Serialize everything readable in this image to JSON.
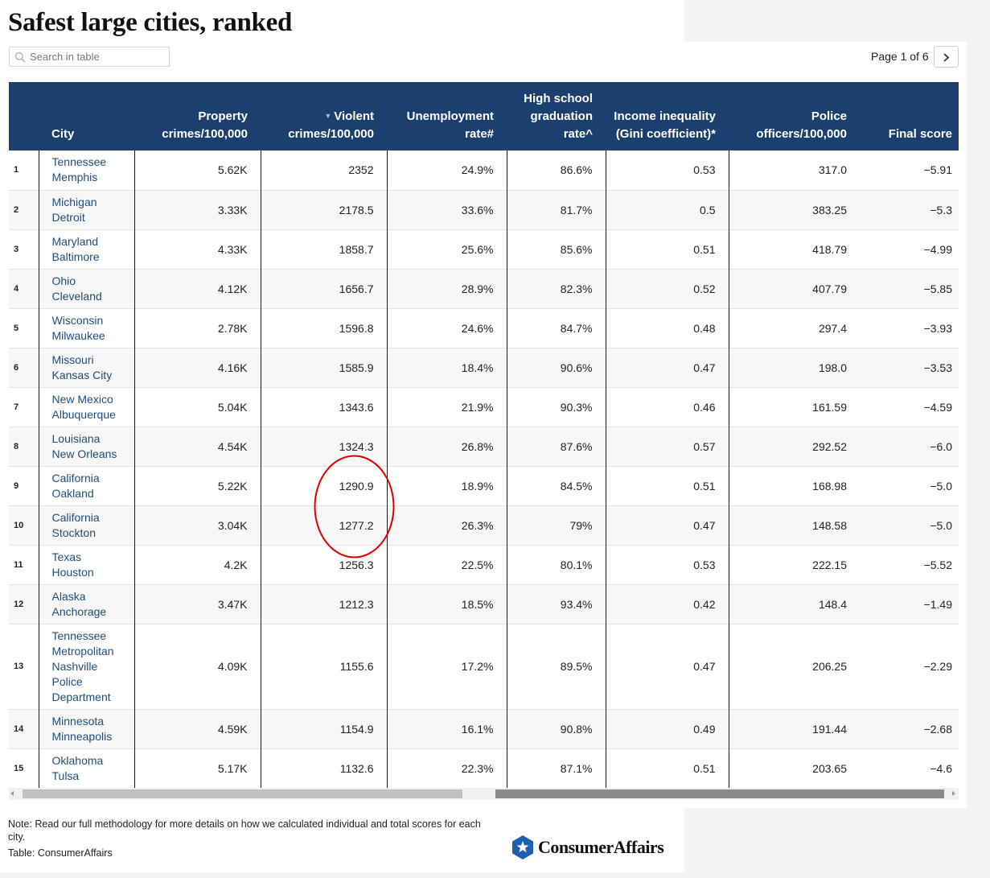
{
  "title": "Safest large cities, ranked",
  "search": {
    "placeholder": "Search in table",
    "value": "",
    "icon": "search-icon"
  },
  "pagination": {
    "label": "Page 1 of 6",
    "next_icon": "chevron-right-icon"
  },
  "table": {
    "columns": {
      "city": "City",
      "property": "Property crimes/100,000",
      "violent": "Violent crimes/100,000",
      "unemployment": "Unemployment rate#",
      "graduation": "High school graduation rate^",
      "income": "Income inequality (Gini coefficient)*",
      "police": "Police officers/100,000",
      "final": "Final score"
    },
    "sort": {
      "column": "violent",
      "direction": "descending",
      "indicator": "▼"
    },
    "rows": [
      {
        "rank": "1",
        "state": "Tennessee",
        "city": "Memphis",
        "property": "5.62K",
        "violent": "2352",
        "unemployment": "24.9%",
        "graduation": "86.6%",
        "income": "0.53",
        "police": "317.0",
        "final": "−5.91"
      },
      {
        "rank": "2",
        "state": "Michigan",
        "city": "Detroit",
        "property": "3.33K",
        "violent": "2178.5",
        "unemployment": "33.6%",
        "graduation": "81.7%",
        "income": "0.5",
        "police": "383.25",
        "final": "−5.3"
      },
      {
        "rank": "3",
        "state": "Maryland",
        "city": "Baltimore",
        "property": "4.33K",
        "violent": "1858.7",
        "unemployment": "25.6%",
        "graduation": "85.6%",
        "income": "0.51",
        "police": "418.79",
        "final": "−4.99"
      },
      {
        "rank": "4",
        "state": "Ohio",
        "city": "Cleveland",
        "property": "4.12K",
        "violent": "1656.7",
        "unemployment": "28.9%",
        "graduation": "82.3%",
        "income": "0.52",
        "police": "407.79",
        "final": "−5.85"
      },
      {
        "rank": "5",
        "state": "Wisconsin",
        "city": "Milwaukee",
        "property": "2.78K",
        "violent": "1596.8",
        "unemployment": "24.6%",
        "graduation": "84.7%",
        "income": "0.48",
        "police": "297.4",
        "final": "−3.93"
      },
      {
        "rank": "6",
        "state": "Missouri",
        "city": "Kansas City",
        "property": "4.16K",
        "violent": "1585.9",
        "unemployment": "18.4%",
        "graduation": "90.6%",
        "income": "0.47",
        "police": "198.0",
        "final": "−3.53"
      },
      {
        "rank": "7",
        "state": "New Mexico",
        "city": "Albuquerque",
        "property": "5.04K",
        "violent": "1343.6",
        "unemployment": "21.9%",
        "graduation": "90.3%",
        "income": "0.46",
        "police": "161.59",
        "final": "−4.59"
      },
      {
        "rank": "8",
        "state": "Louisiana",
        "city": "New Orleans",
        "property": "4.54K",
        "violent": "1324.3",
        "unemployment": "26.8%",
        "graduation": "87.6%",
        "income": "0.57",
        "police": "292.52",
        "final": "−6.0"
      },
      {
        "rank": "9",
        "state": "California",
        "city": "Oakland",
        "property": "5.22K",
        "violent": "1290.9",
        "unemployment": "18.9%",
        "graduation": "84.5%",
        "income": "0.51",
        "police": "168.98",
        "final": "−5.0"
      },
      {
        "rank": "10",
        "state": "California",
        "city": "Stockton",
        "property": "3.04K",
        "violent": "1277.2",
        "unemployment": "26.3%",
        "graduation": "79%",
        "income": "0.47",
        "police": "148.58",
        "final": "−5.0"
      },
      {
        "rank": "11",
        "state": "Texas",
        "city": "Houston",
        "property": "4.2K",
        "violent": "1256.3",
        "unemployment": "22.5%",
        "graduation": "80.1%",
        "income": "0.53",
        "police": "222.15",
        "final": "−5.52"
      },
      {
        "rank": "12",
        "state": "Alaska",
        "city": "Anchorage",
        "property": "3.47K",
        "violent": "1212.3",
        "unemployment": "18.5%",
        "graduation": "93.4%",
        "income": "0.42",
        "police": "148.4",
        "final": "−1.49"
      },
      {
        "rank": "13",
        "state": "Tennessee",
        "city": "Metropolitan Nashville Police Department",
        "city_lines": [
          "Metropolitan",
          "Nashville",
          "Police",
          "Department"
        ],
        "property": "4.09K",
        "violent": "1155.6",
        "unemployment": "17.2%",
        "graduation": "89.5%",
        "income": "0.47",
        "police": "206.25",
        "final": "−2.29"
      },
      {
        "rank": "14",
        "state": "Minnesota",
        "city": "Minneapolis",
        "property": "4.59K",
        "violent": "1154.9",
        "unemployment": "16.1%",
        "graduation": "90.8%",
        "income": "0.49",
        "police": "191.44",
        "final": "−2.68"
      },
      {
        "rank": "15",
        "state": "Oklahoma",
        "city": "Tulsa",
        "property": "5.17K",
        "violent": "1132.6",
        "unemployment": "22.3%",
        "graduation": "87.1%",
        "income": "0.51",
        "police": "203.65",
        "final": "−4.6"
      }
    ]
  },
  "footer": {
    "note": "Note: Read our full methodology for more details on how we calculated individual and total scores for each city.",
    "source": "Table: ConsumerAffairs",
    "logo_text": "ConsumerAffairs"
  },
  "colors": {
    "header_bg": "#1b3f6e",
    "city_link": "#1f4e79",
    "annotation": "#e00000"
  },
  "annotation": {
    "type": "circle",
    "highlights": [
      "1290.9",
      "1277.2"
    ]
  }
}
